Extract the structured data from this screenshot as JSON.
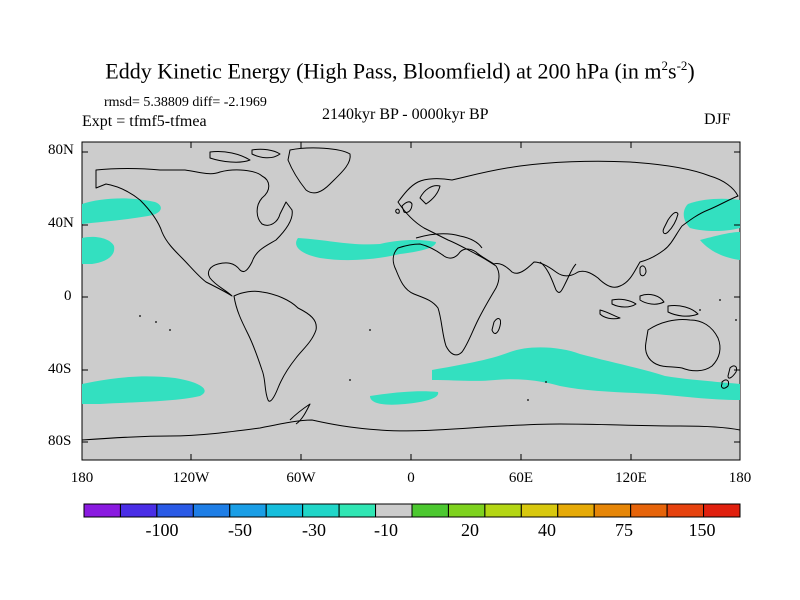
{
  "title": {
    "main": "Eddy Kinetic Energy (High Pass, Bloomfield) at 200 hPa (in m",
    "sup1": "2",
    "mid": "s",
    "sup2": "-2",
    "end": ")"
  },
  "stats": "rmsd= 5.38809 diff= -2.1969",
  "experiment": "Expt = tfmf5-tfmea",
  "period": "2140kyr BP - 0000kyr BP",
  "season": "DJF",
  "lat_labels": [
    "80N",
    "40N",
    "0",
    "40S",
    "80S"
  ],
  "lon_labels": [
    "180",
    "120W",
    "60W",
    "0",
    "60E",
    "120E",
    "180"
  ],
  "colorbar": {
    "colors": [
      "#8a1ae0",
      "#4a2ee6",
      "#2a5ae6",
      "#1e7ee6",
      "#1a9ee6",
      "#16bedc",
      "#20d6c8",
      "#30e6b4",
      "#cccccc",
      "#4cc830",
      "#7ed21e",
      "#b4d614",
      "#d8c80e",
      "#e6aa08",
      "#e68608",
      "#e6640a",
      "#e6420e",
      "#e0200e"
    ],
    "labels": [
      "-100",
      "-50",
      "-30",
      "-10",
      "20",
      "40",
      "75",
      "150"
    ]
  },
  "colors": {
    "land_ocean": "#cccccc",
    "anomaly_fill": "#33e0c0",
    "coast": "#000000"
  }
}
